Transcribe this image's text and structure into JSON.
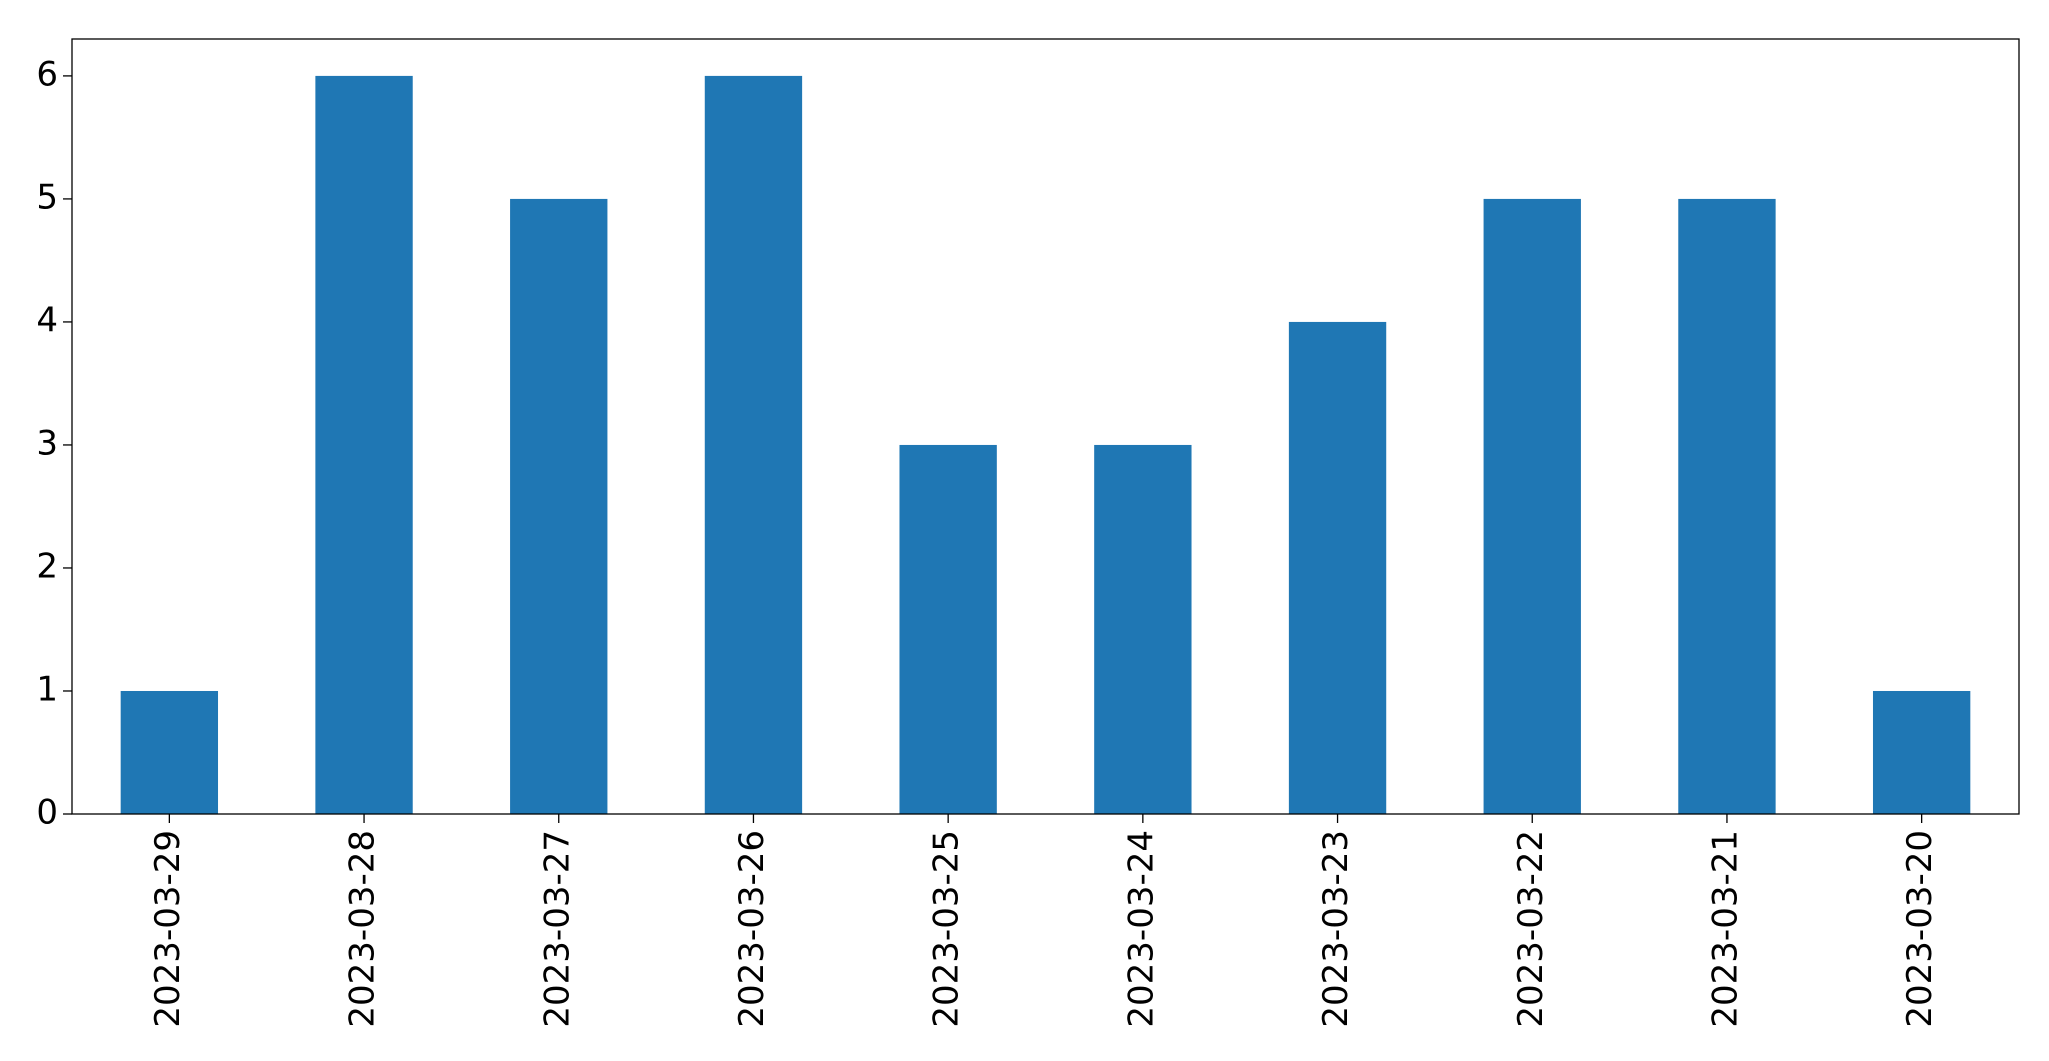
{
  "chart_data": {
    "type": "bar",
    "categories": [
      "2023-03-29",
      "2023-03-28",
      "2023-03-27",
      "2023-03-26",
      "2023-03-25",
      "2023-03-24",
      "2023-03-23",
      "2023-03-22",
      "2023-03-21",
      "2023-03-20"
    ],
    "values": [
      1,
      6,
      5,
      6,
      3,
      3,
      4,
      5,
      5,
      1
    ],
    "color": "#1f77b4",
    "ylim": [
      0,
      6.3
    ],
    "yticks": [
      0,
      1,
      2,
      3,
      4,
      5,
      6
    ],
    "grid": false
  }
}
